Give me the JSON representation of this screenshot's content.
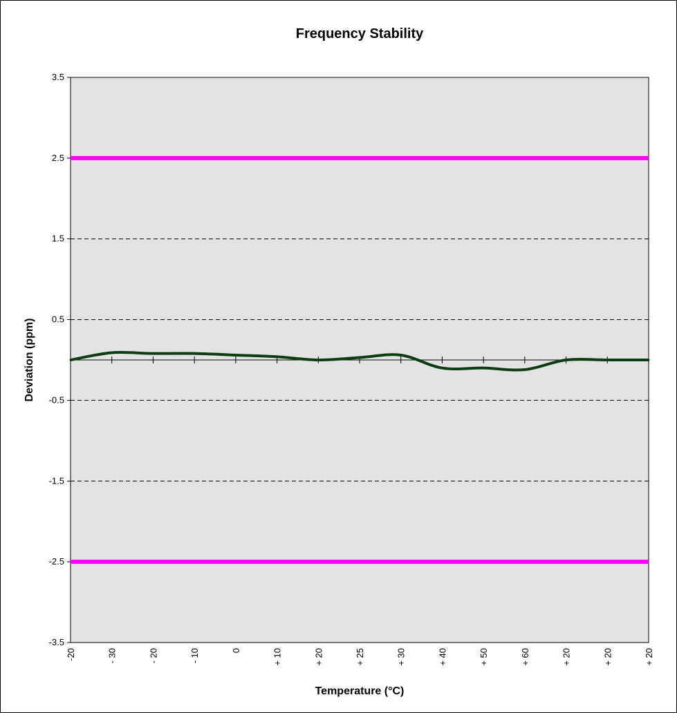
{
  "chart_data": {
    "type": "line",
    "title": "Frequency Stability",
    "xlabel": "Temperature (°C)",
    "ylabel": "Deviation (ppm)",
    "ylim": [
      -3.5,
      3.5
    ],
    "yticks": [
      "3.5",
      "2.5",
      "1.5",
      "0.5",
      "-0.5",
      "-1.5",
      "-2.5",
      "-3.5"
    ],
    "categories": [
      "-20",
      "- 30",
      "- 20",
      "- 10",
      "0",
      "+ 10",
      "+ 20",
      "+ 25",
      "+ 30",
      "+ 40",
      "+ 50",
      "+ 60",
      "+ 20",
      "+ 20",
      "+ 20"
    ],
    "grid": "dashed horizontal",
    "series": [
      {
        "values": [
          0.0,
          0.09,
          0.08,
          0.08,
          0.06,
          0.04,
          0.0,
          0.03,
          0.06,
          -0.1,
          -0.1,
          -0.12,
          0.0,
          0.0,
          0.0
        ],
        "color": "#0f3b12"
      }
    ],
    "limits": [
      {
        "value": 2.5,
        "color": "#ff00ff"
      },
      {
        "value": -2.5,
        "color": "#ff00ff"
      }
    ],
    "plot_background": "#e3e3e3"
  }
}
